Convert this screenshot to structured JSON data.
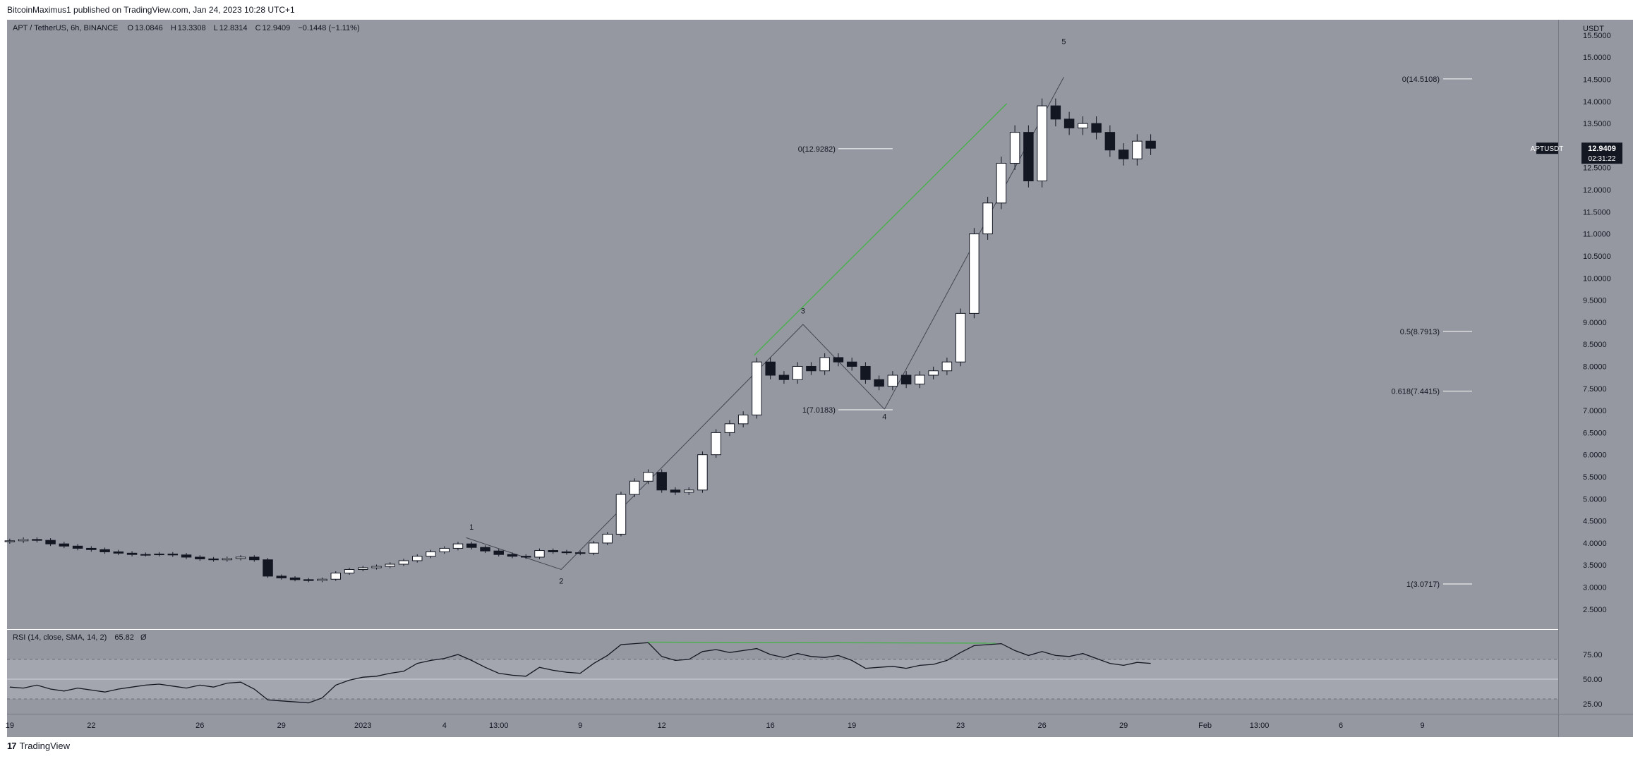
{
  "header": {
    "publisher_text": "BitcoinMaximus1 published on TradingView.com, Jan 24, 2023 10:28 UTC+1"
  },
  "legend": {
    "symbol": "APT / TetherUS, 6h, BINANCE",
    "open_label": "O",
    "open": "13.0846",
    "high_label": "H",
    "high": "13.3308",
    "low_label": "L",
    "low": "12.8314",
    "close_label": "C",
    "close": "12.9409",
    "change": "−0.1448 (−1.11%)"
  },
  "rsi_legend": {
    "label": "RSI (14, close, SMA, 14, 2)",
    "value": "65.82",
    "extra": "Ø"
  },
  "footer": {
    "logo": "17",
    "brand": "TradingView"
  },
  "price_axis": {
    "unit": "USDT",
    "ticks": [
      "15.5000",
      "15.0000",
      "14.5000",
      "14.0000",
      "13.5000",
      "13.0000",
      "12.5000",
      "12.0000",
      "11.5000",
      "11.0000",
      "10.5000",
      "10.0000",
      "9.5000",
      "9.0000",
      "8.5000",
      "8.0000",
      "7.5000",
      "7.0000",
      "6.5000",
      "6.0000",
      "5.5000",
      "5.0000",
      "4.5000",
      "4.0000",
      "3.5000",
      "3.0000",
      "2.5000"
    ],
    "tick_values": [
      15.5,
      15.0,
      14.5,
      14.0,
      13.5,
      13.0,
      12.5,
      12.0,
      11.5,
      11.0,
      10.5,
      10.0,
      9.5,
      9.0,
      8.5,
      8.0,
      7.5,
      7.0,
      6.5,
      6.0,
      5.5,
      5.0,
      4.5,
      4.0,
      3.5,
      3.0,
      2.5
    ],
    "current_label": "APTUSDT",
    "current_price": "12.9409",
    "countdown": "02:31:22"
  },
  "rsi_axis": {
    "ticks": [
      "75.00",
      "50.00",
      "25.00"
    ],
    "tick_values": [
      75,
      50,
      25
    ],
    "band_upper": 70,
    "band_mid": 50,
    "band_lower": 30
  },
  "time_axis": {
    "labels": [
      "19",
      "22",
      "26",
      "29",
      "2023",
      "4",
      "13:00",
      "9",
      "12",
      "16",
      "19",
      "23",
      "26",
      "29",
      "Feb",
      "13:00",
      "6",
      "9"
    ],
    "positions_day": [
      0,
      3,
      7,
      10,
      13,
      16,
      18,
      21,
      24,
      28,
      31,
      35,
      38,
      41,
      44,
      46,
      49,
      52
    ]
  },
  "colors": {
    "background": "#9598a1",
    "candle_up": "#ffffff",
    "candle_down": "#131722",
    "wick": "#131722",
    "trendline": "#4caf50",
    "wave_line": "#434651",
    "fib_line": "#ffffff"
  },
  "chart_data": {
    "type": "candlestick",
    "title": "APT / TetherUS, 6h, BINANCE",
    "ylabel": "USDT",
    "ylim": [
      2.05,
      15.85
    ],
    "x_unit": "days since Dec 19, 2022",
    "xlim": [
      -0.1,
      57.0
    ],
    "candles_ohlc_note": "derived from visible chart; [open, high, low, close] per 6h bar",
    "candles": [],
    "series_close": [
      [
        0,
        4.05
      ],
      [
        0.5,
        4.08
      ],
      [
        1.0,
        4.06
      ],
      [
        1.5,
        3.98
      ],
      [
        2.0,
        3.93
      ],
      [
        2.5,
        3.88
      ],
      [
        3.0,
        3.85
      ],
      [
        3.5,
        3.8
      ],
      [
        4.0,
        3.77
      ],
      [
        4.5,
        3.74
      ],
      [
        5.0,
        3.74
      ],
      [
        5.5,
        3.75
      ],
      [
        6.0,
        3.73
      ],
      [
        6.5,
        3.68
      ],
      [
        7.0,
        3.64
      ],
      [
        7.5,
        3.62
      ],
      [
        8.0,
        3.65
      ],
      [
        8.5,
        3.68
      ],
      [
        9.0,
        3.62
      ],
      [
        9.5,
        3.25
      ],
      [
        10.0,
        3.21
      ],
      [
        10.5,
        3.17
      ],
      [
        11.0,
        3.15
      ],
      [
        11.5,
        3.18
      ],
      [
        12.0,
        3.32
      ],
      [
        12.5,
        3.4
      ],
      [
        13.0,
        3.44
      ],
      [
        13.5,
        3.47
      ],
      [
        14.0,
        3.52
      ],
      [
        14.5,
        3.6
      ],
      [
        15.0,
        3.7
      ],
      [
        15.5,
        3.8
      ],
      [
        16.0,
        3.88
      ],
      [
        16.5,
        3.98
      ],
      [
        17.0,
        3.9
      ],
      [
        17.5,
        3.82
      ],
      [
        18.0,
        3.74
      ],
      [
        18.5,
        3.7
      ],
      [
        19.0,
        3.68
      ],
      [
        19.5,
        3.83
      ],
      [
        20.0,
        3.8
      ],
      [
        20.5,
        3.78
      ],
      [
        21.0,
        3.77
      ],
      [
        21.5,
        4.0
      ],
      [
        22.0,
        4.2
      ],
      [
        22.5,
        5.1
      ],
      [
        23.0,
        5.4
      ],
      [
        23.5,
        5.6
      ],
      [
        24.0,
        5.2
      ],
      [
        24.5,
        5.15
      ],
      [
        25.0,
        5.2
      ],
      [
        25.5,
        6.0
      ],
      [
        26.0,
        6.5
      ],
      [
        26.5,
        6.7
      ],
      [
        27.0,
        6.9
      ],
      [
        27.5,
        8.1
      ],
      [
        28.0,
        7.8
      ],
      [
        28.5,
        7.7
      ],
      [
        29.0,
        8.0
      ],
      [
        29.5,
        7.9
      ],
      [
        30.0,
        8.2
      ],
      [
        30.5,
        8.1
      ],
      [
        31.0,
        8.0
      ],
      [
        31.5,
        7.7
      ],
      [
        32.0,
        7.55
      ],
      [
        32.5,
        7.8
      ],
      [
        33.0,
        7.6
      ],
      [
        33.5,
        7.8
      ],
      [
        34.0,
        7.9
      ],
      [
        34.5,
        8.1
      ],
      [
        35.0,
        9.2
      ],
      [
        35.5,
        11.0
      ],
      [
        36.0,
        11.7
      ],
      [
        36.5,
        12.6
      ],
      [
        37.0,
        13.3
      ],
      [
        37.5,
        12.2
      ],
      [
        38.0,
        13.9
      ],
      [
        38.5,
        13.6
      ],
      [
        39.0,
        13.4
      ],
      [
        39.5,
        13.5
      ],
      [
        40.0,
        13.3
      ],
      [
        40.5,
        12.9
      ],
      [
        41.0,
        12.7
      ],
      [
        41.5,
        13.1
      ],
      [
        42.0,
        12.94
      ]
    ],
    "rsi": {
      "label": "RSI (14, close, SMA, 14, 2)",
      "ylim": [
        15,
        100
      ],
      "series": [
        [
          0,
          42
        ],
        [
          0.5,
          41
        ],
        [
          1.0,
          44
        ],
        [
          1.5,
          40
        ],
        [
          2.0,
          38
        ],
        [
          2.5,
          41
        ],
        [
          3.0,
          39
        ],
        [
          3.5,
          37
        ],
        [
          4.0,
          40
        ],
        [
          4.5,
          42
        ],
        [
          5.0,
          44
        ],
        [
          5.5,
          45
        ],
        [
          6.0,
          43
        ],
        [
          6.5,
          41
        ],
        [
          7.0,
          44
        ],
        [
          7.5,
          42
        ],
        [
          8.0,
          46
        ],
        [
          8.5,
          47
        ],
        [
          9.0,
          40
        ],
        [
          9.5,
          29
        ],
        [
          10.0,
          28
        ],
        [
          10.5,
          27
        ],
        [
          11.0,
          26
        ],
        [
          11.5,
          31
        ],
        [
          12.0,
          44
        ],
        [
          12.5,
          49
        ],
        [
          13.0,
          52
        ],
        [
          13.5,
          53
        ],
        [
          14.0,
          56
        ],
        [
          14.5,
          58
        ],
        [
          15.0,
          66
        ],
        [
          15.5,
          69
        ],
        [
          16.0,
          71
        ],
        [
          16.5,
          75
        ],
        [
          17.0,
          69
        ],
        [
          17.5,
          62
        ],
        [
          18.0,
          56
        ],
        [
          18.5,
          54
        ],
        [
          19.0,
          53
        ],
        [
          19.5,
          62
        ],
        [
          20.0,
          59
        ],
        [
          20.5,
          57
        ],
        [
          21.0,
          56
        ],
        [
          21.5,
          66
        ],
        [
          22.0,
          74
        ],
        [
          22.5,
          85
        ],
        [
          23.0,
          86
        ],
        [
          23.5,
          87
        ],
        [
          24.0,
          73
        ],
        [
          24.5,
          69
        ],
        [
          25.0,
          70
        ],
        [
          25.5,
          78
        ],
        [
          26.0,
          80
        ],
        [
          26.5,
          77
        ],
        [
          27.0,
          79
        ],
        [
          27.5,
          81
        ],
        [
          28.0,
          75
        ],
        [
          28.5,
          72
        ],
        [
          29.0,
          76
        ],
        [
          29.5,
          73
        ],
        [
          30.0,
          72
        ],
        [
          30.5,
          74
        ],
        [
          31.0,
          69
        ],
        [
          31.5,
          61
        ],
        [
          32.0,
          62
        ],
        [
          32.5,
          63
        ],
        [
          33.0,
          61
        ],
        [
          33.5,
          64
        ],
        [
          34.0,
          65
        ],
        [
          34.5,
          69
        ],
        [
          35.0,
          77
        ],
        [
          35.5,
          84
        ],
        [
          36.0,
          85
        ],
        [
          36.5,
          86
        ],
        [
          37.0,
          79
        ],
        [
          37.5,
          74
        ],
        [
          38.0,
          78
        ],
        [
          38.5,
          74
        ],
        [
          39.0,
          73
        ],
        [
          39.5,
          76
        ],
        [
          40.0,
          71
        ],
        [
          40.5,
          66
        ],
        [
          41.0,
          64
        ],
        [
          41.5,
          67
        ],
        [
          42.0,
          66
        ]
      ]
    },
    "annotations": {
      "wave_labels": [
        {
          "text": "1",
          "x": 17.0,
          "y": 4.3
        },
        {
          "text": "2",
          "x": 20.3,
          "y": 3.08
        },
        {
          "text": "3",
          "x": 29.2,
          "y": 9.2
        },
        {
          "text": "4",
          "x": 32.2,
          "y": 6.8
        },
        {
          "text": "5",
          "x": 38.8,
          "y": 15.3
        }
      ],
      "wave_path": [
        [
          16.8,
          4.12
        ],
        [
          20.3,
          3.4
        ],
        [
          29.2,
          8.95
        ],
        [
          32.2,
          7.03
        ],
        [
          38.8,
          14.55
        ]
      ],
      "trendline_price": [
        [
          27.4,
          8.25
        ],
        [
          36.7,
          13.95
        ]
      ],
      "trendline_rsi": [
        [
          23.5,
          87.5
        ],
        [
          36.3,
          86.5
        ]
      ],
      "fib_left": [
        {
          "label": "0(12.9282)",
          "value": 12.9282,
          "x1": 30.5,
          "x2": 32.5
        },
        {
          "label": "1(7.0183)",
          "value": 7.0183,
          "x1": 30.5,
          "x2": 32.5
        }
      ],
      "fib_right": [
        {
          "label": "0(14.5108)",
          "value": 14.5108
        },
        {
          "label": "0.5(8.7913)",
          "value": 8.7913
        },
        {
          "label": "0.618(7.4415)",
          "value": 7.4415
        },
        {
          "label": "1(3.0717)",
          "value": 3.0717
        }
      ]
    }
  }
}
